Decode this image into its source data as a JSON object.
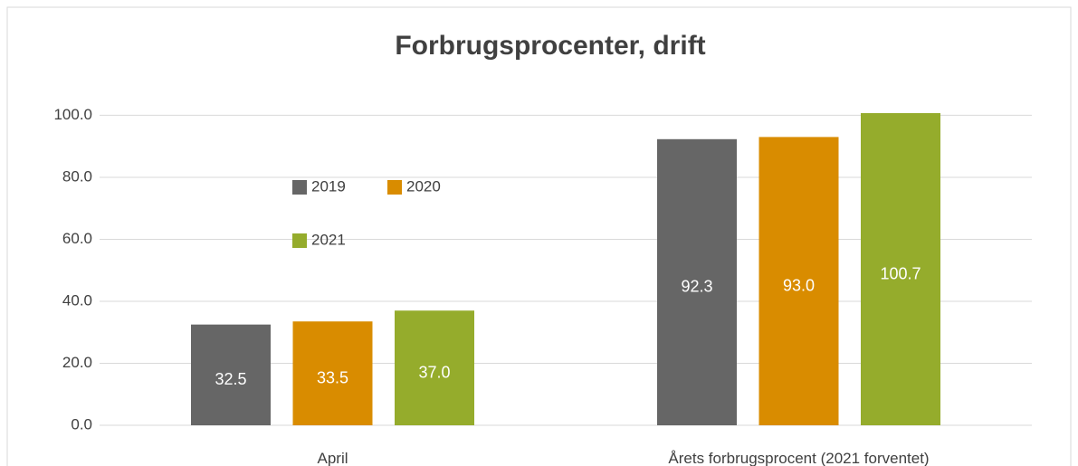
{
  "chart_data": {
    "type": "bar",
    "title": "Forbrugsprocenter, drift",
    "categories": [
      "April",
      "Årets forbrugsprocent (2021 forventet)"
    ],
    "series": [
      {
        "name": "2019",
        "color": "#666666",
        "values": [
          32.5,
          92.3
        ],
        "value_labels": [
          "32.5",
          "92.3"
        ]
      },
      {
        "name": "2020",
        "color": "#d98c00",
        "values": [
          33.5,
          93.0
        ],
        "value_labels": [
          "33.5",
          "93.0"
        ]
      },
      {
        "name": "2021",
        "color": "#95ac2c",
        "values": [
          37.0,
          100.7
        ],
        "value_labels": [
          "37.0",
          "100.7"
        ]
      }
    ],
    "ylim": [
      0,
      101
    ],
    "yticks": [
      {
        "value": 0,
        "label": "0.0"
      },
      {
        "value": 20,
        "label": "20.0"
      },
      {
        "value": 40,
        "label": "40.0"
      },
      {
        "value": 60,
        "label": "60.0"
      },
      {
        "value": 80,
        "label": "80.0"
      },
      {
        "value": 100,
        "label": "100.0"
      }
    ],
    "grid": true,
    "legend": "upper left"
  }
}
